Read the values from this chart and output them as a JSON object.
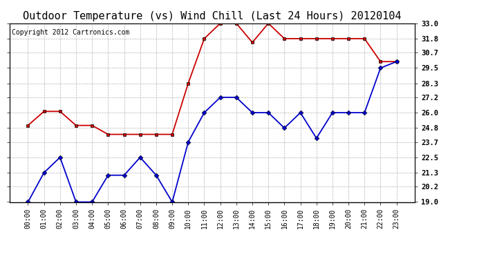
{
  "title": "Outdoor Temperature (vs) Wind Chill (Last 24 Hours) 20120104",
  "copyright": "Copyright 2012 Cartronics.com",
  "x_labels": [
    "00:00",
    "01:00",
    "02:00",
    "03:00",
    "04:00",
    "05:00",
    "06:00",
    "07:00",
    "08:00",
    "09:00",
    "10:00",
    "11:00",
    "12:00",
    "13:00",
    "14:00",
    "15:00",
    "16:00",
    "17:00",
    "18:00",
    "19:00",
    "20:00",
    "21:00",
    "22:00",
    "23:00"
  ],
  "temp_red": [
    25.0,
    26.1,
    26.1,
    25.0,
    25.0,
    24.3,
    24.3,
    24.3,
    24.3,
    24.3,
    28.3,
    31.8,
    33.0,
    33.0,
    31.5,
    33.0,
    31.8,
    31.8,
    31.8,
    31.8,
    31.8,
    31.8,
    30.0,
    30.0
  ],
  "wind_blue": [
    19.0,
    21.3,
    22.5,
    19.0,
    19.0,
    21.1,
    21.1,
    22.5,
    21.1,
    19.0,
    23.7,
    26.0,
    27.2,
    27.2,
    26.0,
    26.0,
    24.8,
    26.0,
    24.0,
    26.0,
    26.0,
    26.0,
    29.5,
    30.0
  ],
  "ylim_min": 19.0,
  "ylim_max": 33.0,
  "yticks": [
    19.0,
    20.2,
    21.3,
    22.5,
    23.7,
    24.8,
    26.0,
    27.2,
    28.3,
    29.5,
    30.7,
    31.8,
    33.0
  ],
  "red_color": "#cc0000",
  "blue_color": "#0000cc",
  "grid_color": "#aaaaaa",
  "bg_color": "#ffffff",
  "title_fontsize": 11,
  "copyright_fontsize": 7,
  "tick_fontsize": 7.5,
  "xtick_fontsize": 7
}
